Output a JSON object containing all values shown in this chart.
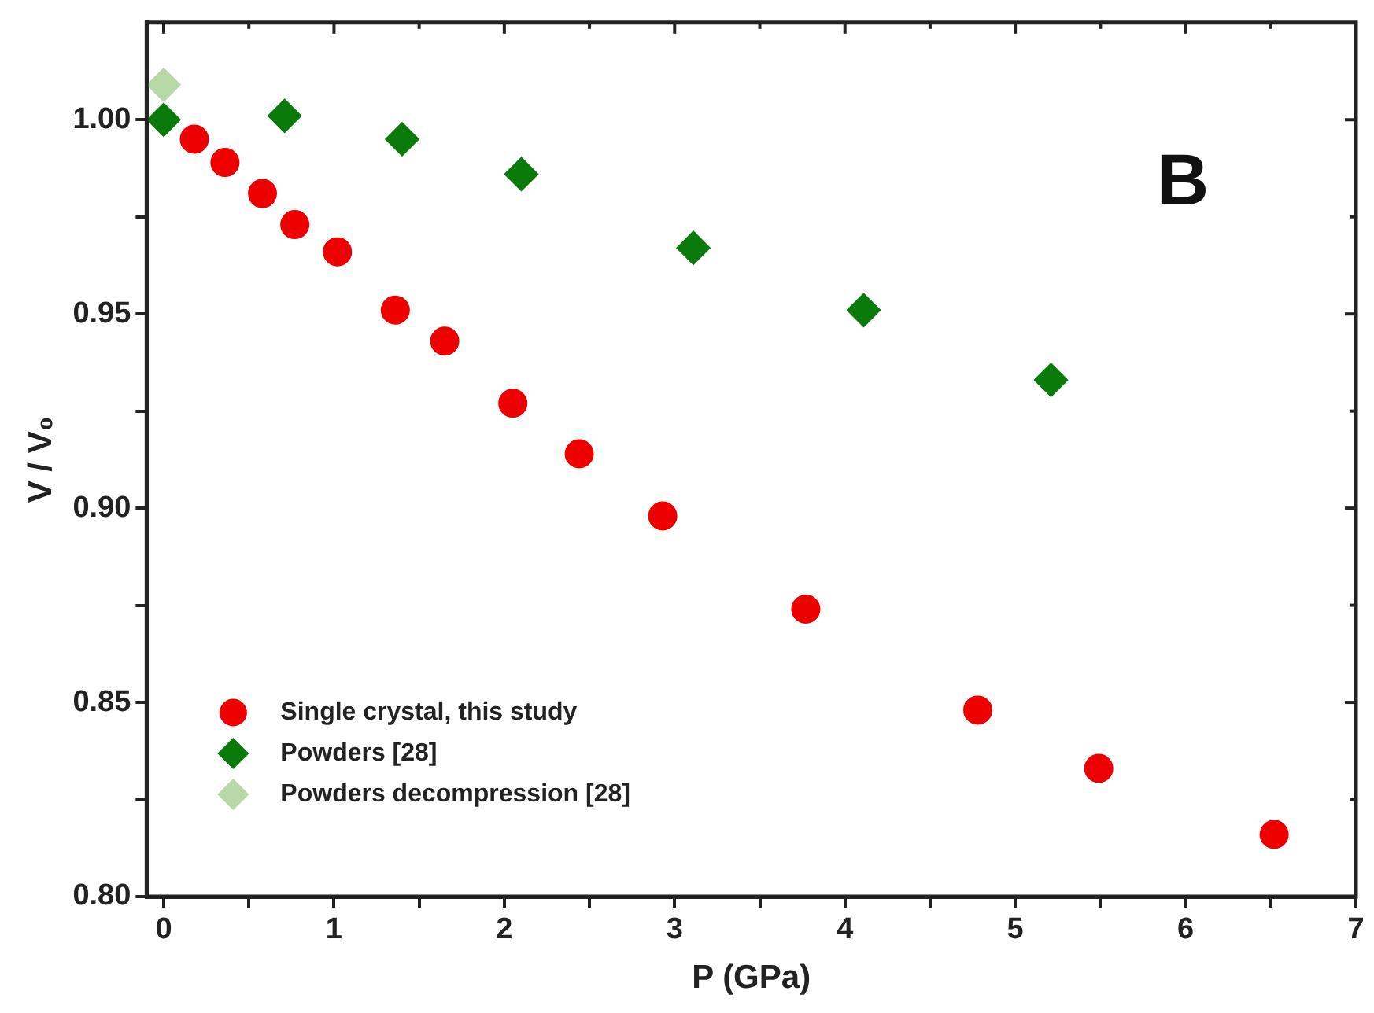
{
  "chart_data": {
    "type": "scatter",
    "xlabel": "P (GPa)",
    "ylabel": "V / V₀",
    "annotations": [
      "B"
    ],
    "xlim": [
      -0.1,
      7
    ],
    "xticks": [
      0,
      {
        "value": 0.5,
        "label": null
      },
      1,
      {
        "value": 1.5,
        "label": null
      },
      2,
      {
        "value": 2.5,
        "label": null
      },
      3,
      {
        "value": 3.5,
        "label": null
      },
      4,
      {
        "value": 4.5,
        "label": null
      },
      5,
      {
        "value": 5.5,
        "label": null
      },
      6,
      {
        "value": 6.5,
        "label": null
      },
      7
    ],
    "ylim": [
      0.8,
      1.025
    ],
    "yticks": [
      {
        "value": 0.8,
        "label": "0.80"
      },
      {
        "value": 0.825,
        "label": null
      },
      {
        "value": 0.85,
        "label": "0.85"
      },
      {
        "value": 0.875,
        "label": null
      },
      {
        "value": 0.9,
        "label": "0.90"
      },
      {
        "value": 0.925,
        "label": null
      },
      {
        "value": 0.95,
        "label": "0.95"
      },
      {
        "value": 0.975,
        "label": null
      },
      {
        "value": 1.0,
        "label": "1.00"
      }
    ],
    "grid": false,
    "legend": "bottom left",
    "series": [
      {
        "name": "Single crystal, this study",
        "color": "#ee0000",
        "marker": "circle",
        "x": [
          0.18,
          0.36,
          0.58,
          0.77,
          1.02,
          1.36,
          1.65,
          2.05,
          2.44,
          2.93,
          3.77,
          4.78,
          5.49,
          6.52
        ],
        "values": [
          0.995,
          0.989,
          0.981,
          0.973,
          0.966,
          0.951,
          0.943,
          0.927,
          0.914,
          0.898,
          0.874,
          0.848,
          0.833,
          0.816
        ]
      },
      {
        "name": "Powders [28]",
        "color": "#0a7a0a",
        "marker": "diamond",
        "x": [
          0,
          0.71,
          1.4,
          2.1,
          3.11,
          4.11,
          5.21
        ],
        "values": [
          1.0,
          1.001,
          0.995,
          0.986,
          0.967,
          0.951,
          0.933
        ]
      },
      {
        "name": "Powders decompression [28]",
        "color": "#b8d8a8",
        "marker": "diamond",
        "x": [
          0
        ],
        "values": [
          1.009
        ]
      }
    ]
  }
}
